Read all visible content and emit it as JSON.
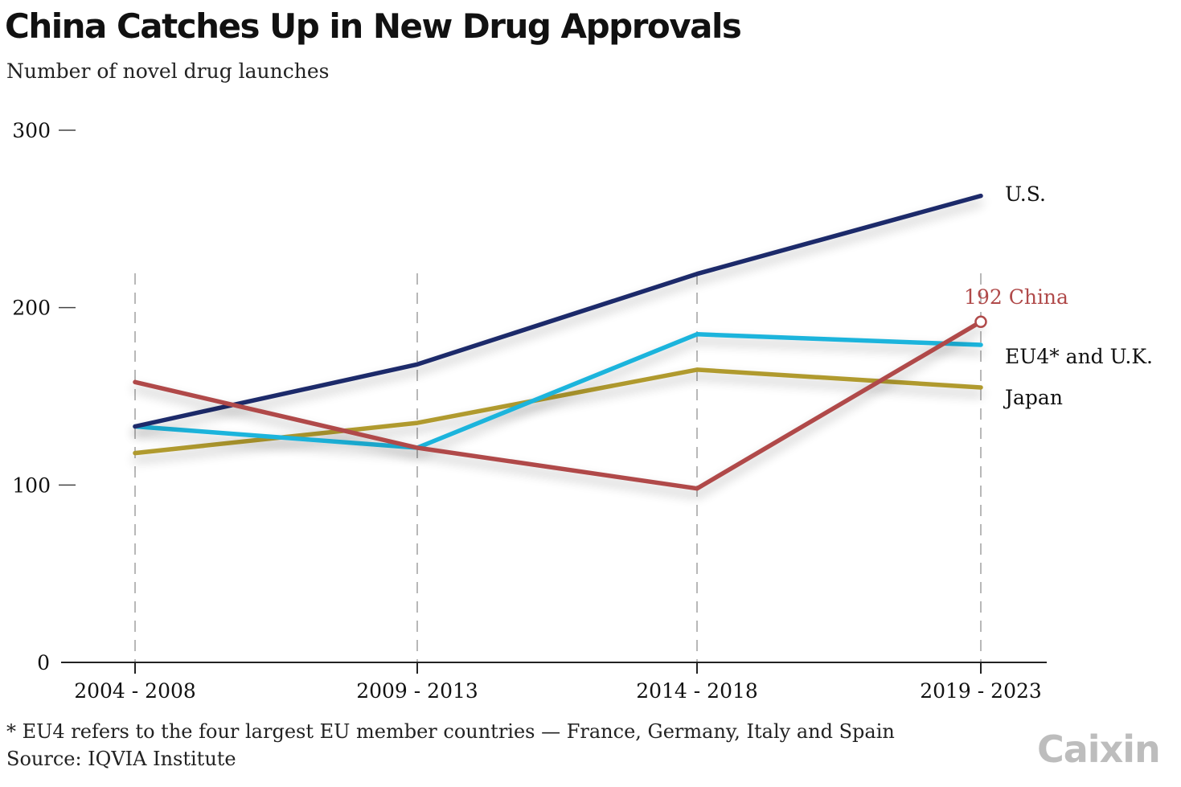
{
  "header": {
    "title": "China Catches Up in New Drug Approvals",
    "subtitle": "Number of novel drug launches"
  },
  "footer": {
    "footnote": "* EU4 refers to the four largest EU member countries — France, Germany, Italy and Spain",
    "source": "Source: IQVIA Institute",
    "logo": "Caixin"
  },
  "chart_data": {
    "type": "line",
    "title": "China Catches Up in New Drug Approvals",
    "subtitle": "Number of novel drug launches",
    "categories": [
      "2004 - 2008",
      "2009 - 2013",
      "2014 - 2018",
      "2019 - 2023"
    ],
    "ylim": [
      0,
      300
    ],
    "yticks": [
      0,
      100,
      200,
      300
    ],
    "grid": "dashed vertical lines at each category",
    "legend": "direct labels at the right end of each line",
    "series": [
      {
        "name": "U.S.",
        "label": "U.S.",
        "color": "#1f2a6b",
        "values": [
          133,
          168,
          219,
          263
        ]
      },
      {
        "name": "EU4* and U.K.",
        "label": "EU4* and U.K.",
        "color": "#1ab4dc",
        "values": [
          133,
          121,
          185,
          179
        ]
      },
      {
        "name": "Japan",
        "label": "Japan",
        "color": "#b09a2e",
        "values": [
          118,
          135,
          165,
          155
        ]
      },
      {
        "name": "China",
        "label": "192 China",
        "color": "#b04a4a",
        "values": [
          158,
          121,
          98,
          192
        ],
        "end_marker": true
      }
    ]
  }
}
